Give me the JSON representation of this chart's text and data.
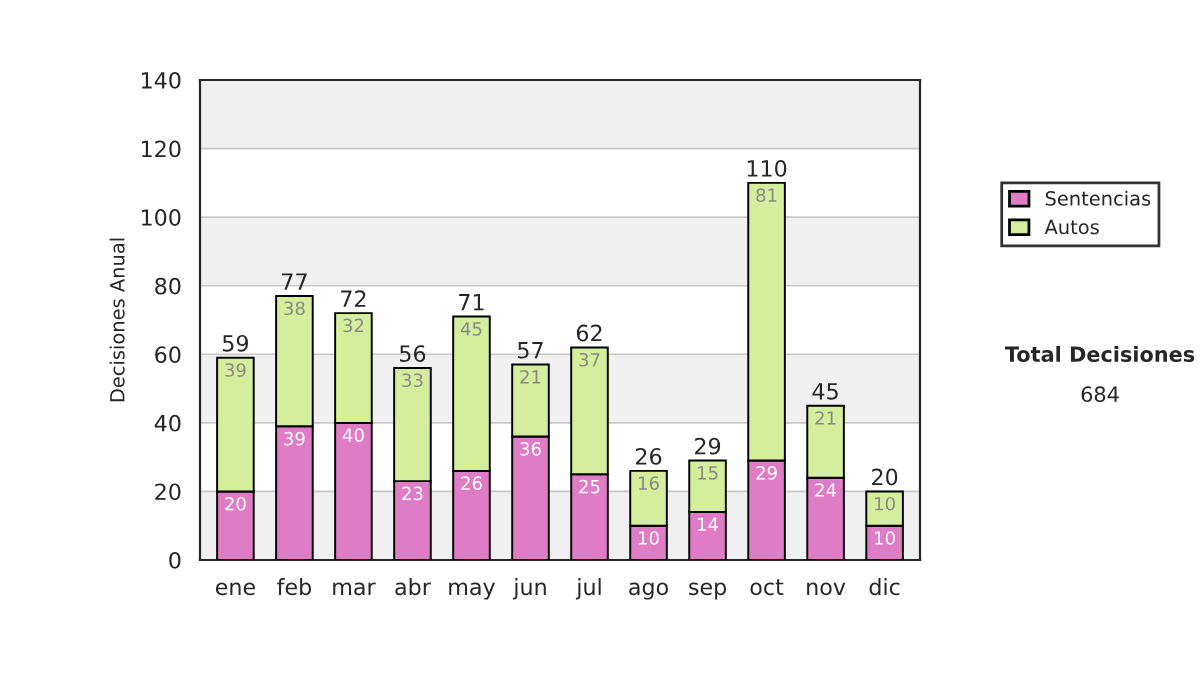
{
  "chart_data": {
    "type": "bar",
    "stacked": true,
    "ylabel": "Decisiones Anual",
    "categories": [
      "ene",
      "feb",
      "mar",
      "abr",
      "may",
      "jun",
      "jul",
      "ago",
      "sep",
      "oct",
      "nov",
      "dic"
    ],
    "series": [
      {
        "name": "Sentencias",
        "color": "#de7cc6",
        "values": [
          20,
          39,
          40,
          23,
          26,
          36,
          25,
          10,
          14,
          29,
          24,
          10
        ]
      },
      {
        "name": "Autos",
        "color": "#d4ee9c",
        "values": [
          39,
          38,
          32,
          33,
          45,
          21,
          37,
          16,
          15,
          81,
          21,
          10
        ]
      }
    ],
    "data_labels": true,
    "totals": [
      "59",
      "77",
      "72",
      "56",
      "71",
      "57",
      "62",
      "26",
      "29",
      "110",
      "45",
      "20"
    ],
    "ylim": [
      0,
      140
    ],
    "yticks": [
      0,
      20,
      40,
      60,
      80,
      100,
      120,
      140
    ],
    "grid": "y",
    "legend": "right",
    "annotations": [
      "Total Decisiones",
      "684"
    ]
  }
}
